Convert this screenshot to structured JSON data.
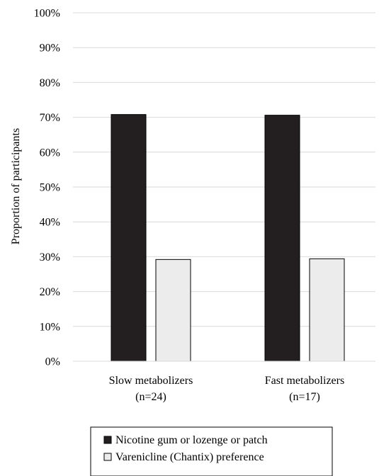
{
  "chart_data": {
    "type": "bar",
    "title": "",
    "xlabel": "",
    "ylabel": "Proportion of participants",
    "ylim": [
      0,
      100
    ],
    "yticks": [
      "0%",
      "10%",
      "20%",
      "30%",
      "40%",
      "50%",
      "60%",
      "70%",
      "80%",
      "90%",
      "100%"
    ],
    "grid": true,
    "categories": [
      [
        "Slow metabolizers",
        "(n=24)"
      ],
      [
        "Fast metabolizers",
        "(n=17)"
      ]
    ],
    "series": [
      {
        "name": "Nicotine gum or lozenge or patch",
        "values": [
          70.8,
          70.6
        ],
        "color": "#231f20"
      },
      {
        "name": "Varenicline (Chantix) preference",
        "values": [
          29.2,
          29.4
        ],
        "color": "#ececec"
      }
    ],
    "legend_position": "bottom"
  }
}
